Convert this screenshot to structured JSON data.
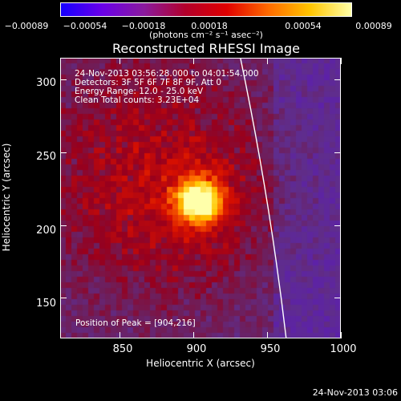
{
  "colorbar": {
    "tick_labels": [
      "−0.00089",
      "−0.00054",
      "−0.00018",
      "0.00018",
      "0.00054",
      "0.00089"
    ],
    "unit_label": "(photons cm⁻² s⁻¹ asec⁻²)",
    "stops": [
      "#1600ff",
      "#6a00e8",
      "#8a1a9e",
      "#b2002b",
      "#e00000",
      "#ff6a00",
      "#ffc400",
      "#ffffa8"
    ]
  },
  "title": "Reconstructed RHESSI Image",
  "info": {
    "line1": "24-Nov-2013 03:56:28.000 to 04:01:54.000",
    "line2": "Detectors: 3F 5F 6F 7F 8F 9F, Att 0",
    "line3": "Energy Range: 12.0 - 25.0 keV",
    "line4": "Clean     Total counts: 3.23E+04",
    "peak": "Position of Peak = [904,216]"
  },
  "x_axis": {
    "title": "Heliocentric X (arcsec)",
    "tick_labels": [
      "850",
      "900",
      "950",
      "1000"
    ]
  },
  "y_axis": {
    "title": "Heliocentric Y (arcsec)",
    "tick_labels": [
      "150",
      "200",
      "250",
      "300"
    ]
  },
  "footer_timestamp": "24-Nov-2013 03:06",
  "chart_data": {
    "type": "heatmap",
    "xlim": [
      810,
      1000
    ],
    "ylim": [
      122,
      315
    ],
    "peak": [
      904,
      216
    ],
    "x_ticks": [
      850,
      900,
      950,
      1000
    ],
    "y_ticks": [
      150,
      200,
      250,
      300
    ],
    "colorbar_range": [
      -0.00089,
      0.00089
    ]
  }
}
